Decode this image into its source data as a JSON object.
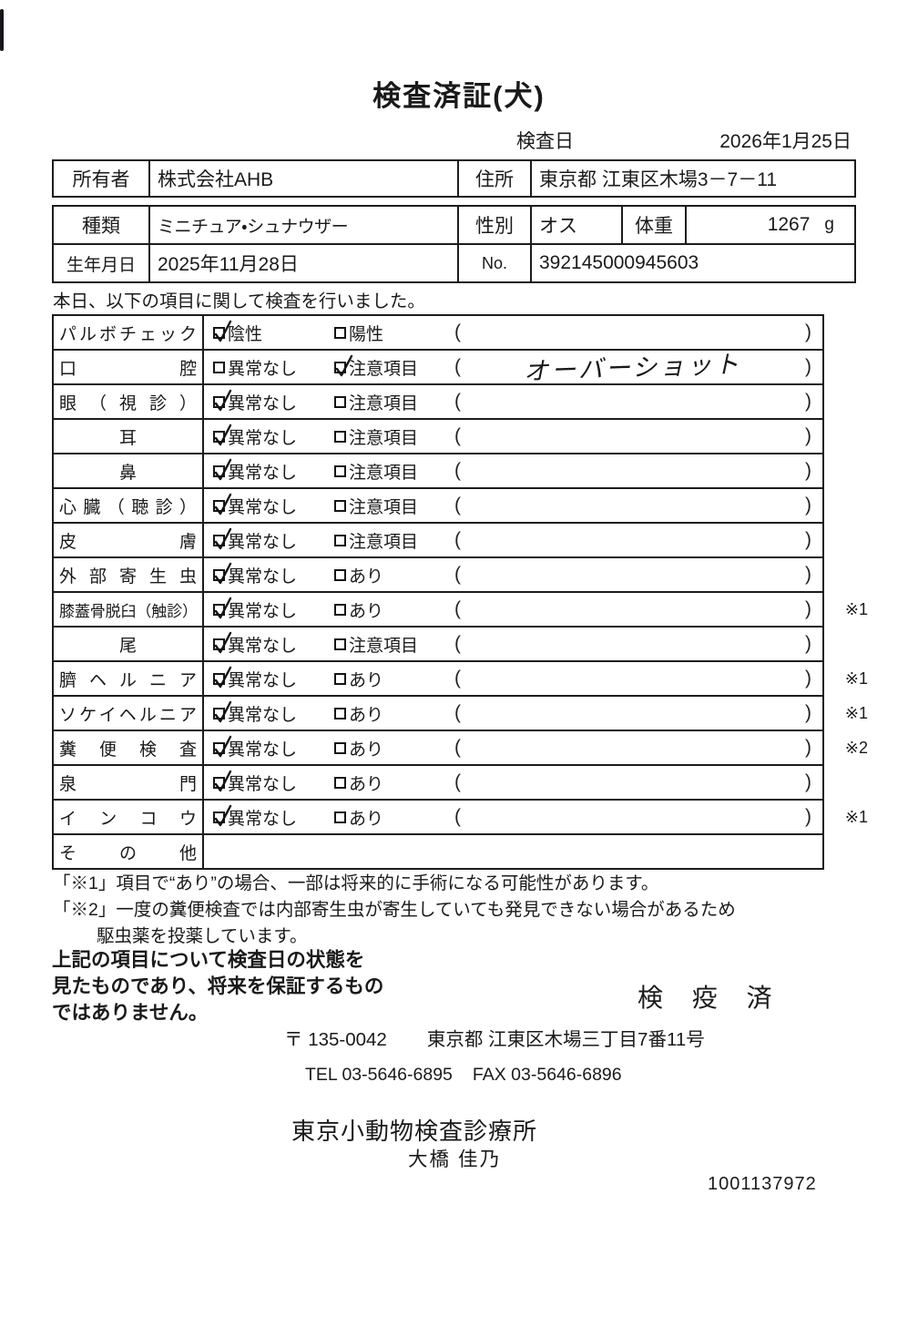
{
  "colors": {
    "ink": "#1a1a1a",
    "border": "#1c1c1c",
    "paper": "#ffffff"
  },
  "title": "検査済証(犬)",
  "header": {
    "inspection_date_label": "検査日",
    "inspection_date": "2026年1月25日",
    "owner_label": "所有者",
    "owner": "株式会社AHB",
    "address_label": "住所",
    "address": "東京都 江東区木場3－7－11",
    "breed_label": "種類",
    "breed": "ミニチュア・シュナウザー",
    "sex_label": "性別",
    "sex": "オス",
    "weight_label": "体重",
    "weight_value": "1267",
    "weight_unit": "g",
    "birthdate_label": "生年月日",
    "birthdate": "2025年11月28日",
    "no_label": "No.",
    "no_value": "392145000945603"
  },
  "intro": "本日、以下の項目に関して検査を行いました。",
  "inspection": {
    "paren_open": "(",
    "paren_close": ")",
    "rows": [
      {
        "label": "パルボチェック",
        "align": "justify",
        "opt1": "陰性",
        "opt1_checked": true,
        "opt2": "陽性",
        "opt2_checked": false,
        "value": "",
        "ref": ""
      },
      {
        "label": "口腔",
        "align": "justify",
        "opt1": "異常なし",
        "opt1_checked": false,
        "opt2": "注意項目",
        "opt2_checked": true,
        "value": "オーバーショット",
        "ref": ""
      },
      {
        "label": "眼（視診）",
        "align": "justify",
        "opt1": "異常なし",
        "opt1_checked": true,
        "opt2": "注意項目",
        "opt2_checked": false,
        "value": "",
        "ref": ""
      },
      {
        "label": "耳",
        "align": "center",
        "opt1": "異常なし",
        "opt1_checked": true,
        "opt2": "注意項目",
        "opt2_checked": false,
        "value": "",
        "ref": ""
      },
      {
        "label": "鼻",
        "align": "center",
        "opt1": "異常なし",
        "opt1_checked": true,
        "opt2": "注意項目",
        "opt2_checked": false,
        "value": "",
        "ref": ""
      },
      {
        "label": "心臓（聴診）",
        "align": "justify",
        "opt1": "異常なし",
        "opt1_checked": true,
        "opt2": "注意項目",
        "opt2_checked": false,
        "value": "",
        "ref": ""
      },
      {
        "label": "皮膚",
        "align": "justify",
        "opt1": "異常なし",
        "opt1_checked": true,
        "opt2": "注意項目",
        "opt2_checked": false,
        "value": "",
        "ref": ""
      },
      {
        "label": "外部寄生虫",
        "align": "justify",
        "opt1": "異常なし",
        "opt1_checked": true,
        "opt2": "あり",
        "opt2_checked": false,
        "value": "",
        "ref": ""
      },
      {
        "label": "膝蓋骨脱臼（触診）",
        "align": "justify",
        "opt1": "異常なし",
        "opt1_checked": true,
        "opt2": "あり",
        "opt2_checked": false,
        "value": "",
        "ref": "※1"
      },
      {
        "label": "尾",
        "align": "center",
        "opt1": "異常なし",
        "opt1_checked": true,
        "opt2": "注意項目",
        "opt2_checked": false,
        "value": "",
        "ref": ""
      },
      {
        "label": "臍ヘルニア",
        "align": "justify",
        "opt1": "異常なし",
        "opt1_checked": true,
        "opt2": "あり",
        "opt2_checked": false,
        "value": "",
        "ref": "※1"
      },
      {
        "label": "ソケイヘルニア",
        "align": "justify",
        "opt1": "異常なし",
        "opt1_checked": true,
        "opt2": "あり",
        "opt2_checked": false,
        "value": "",
        "ref": "※1"
      },
      {
        "label": "糞便検査",
        "align": "justify",
        "opt1": "異常なし",
        "opt1_checked": true,
        "opt2": "あり",
        "opt2_checked": false,
        "value": "",
        "ref": "※2"
      },
      {
        "label": "泉門",
        "align": "justify",
        "opt1": "異常なし",
        "opt1_checked": true,
        "opt2": "あり",
        "opt2_checked": false,
        "value": "",
        "ref": ""
      },
      {
        "label": "インコウ",
        "align": "justify",
        "opt1": "異常なし",
        "opt1_checked": true,
        "opt2": "あり",
        "opt2_checked": false,
        "value": "",
        "ref": "※1"
      },
      {
        "label": "その他",
        "align": "justify",
        "opt1": null,
        "opt1_checked": false,
        "opt2": null,
        "opt2_checked": false,
        "value": null,
        "ref": ""
      }
    ]
  },
  "notes": {
    "line1": "「※1」項目で“あり”の場合、一部は将来的に手術になる可能性があります。",
    "line2": "「※2」一度の糞便検査では内部寄生虫が寄生していても発見できない場合があるため",
    "line3": "駆虫薬を投薬しています。"
  },
  "footer": {
    "disclaimer_line1": "上記の項目について検査日の状態を",
    "disclaimer_line2": "見たものであり、将来を保証するもの",
    "disclaimer_line3": "ではありません。",
    "quarantine_stamp": "検 疫 済",
    "postal_code": "〒 135-0042",
    "address": "東京都 江東区木場三丁目7番11号",
    "tel": "TEL 03-5646-6895",
    "fax": "FAX 03-5646-6896",
    "clinic_name": "東京小動物検査診療所",
    "veterinarian": "大橋  佳乃",
    "serial_number": "1001137972"
  }
}
